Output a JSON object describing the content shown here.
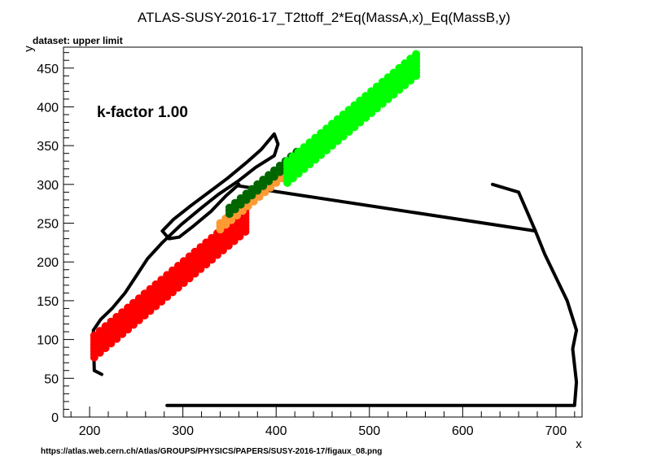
{
  "chart_data": {
    "type": "scatter",
    "title": "ATLAS-SUSY-2016-17_T2ttoff_2*Eq(MassA,x)_Eq(MassB,y)",
    "subtitle": "dataset: upper limit",
    "annotation": "k-factor 1.00",
    "xlabel": "x",
    "ylabel": "y",
    "footer": "https://atlas.web.cern.ch/Atlas/GROUPS/PHYSICS/PAPERS/SUSY-2016-17/figaux_08.png",
    "xlim": [
      172,
      728
    ],
    "ylim": [
      0,
      477
    ],
    "xticks": [
      200,
      300,
      400,
      500,
      600,
      700
    ],
    "yticks": [
      0,
      50,
      100,
      150,
      200,
      250,
      300,
      350,
      400,
      450
    ],
    "grid": false,
    "colors": {
      "red": "#ff0000",
      "orange": "#ff9933",
      "green": "#00ff00",
      "darkgreen": "#006600",
      "contour": "#000000"
    },
    "point_bands": [
      {
        "color": "red",
        "x_start": 205,
        "x_end": 368,
        "dx": 6,
        "offset_min": 100,
        "offset_max": 128
      },
      {
        "color": "orange",
        "x_start": 340,
        "x_end": 412,
        "dx": 6,
        "offset_min": 90,
        "offset_max": 98
      },
      {
        "color": "darkgreen",
        "x_start": 350,
        "x_end": 425,
        "dx": 6,
        "offset_min": 80,
        "offset_max": 88
      },
      {
        "color": "green",
        "x_start": 412,
        "x_end": 552,
        "dx": 6,
        "offset_min": 82,
        "offset_max": 112
      }
    ],
    "contours": [
      {
        "name": "expected",
        "points": [
          [
            213,
            55
          ],
          [
            205,
            60
          ],
          [
            204,
            112
          ],
          [
            212,
            126
          ],
          [
            224,
            140
          ],
          [
            238,
            160
          ],
          [
            250,
            182
          ],
          [
            262,
            204
          ],
          [
            278,
            225
          ],
          [
            298,
            248
          ],
          [
            318,
            268
          ],
          [
            338,
            287
          ],
          [
            360,
            305
          ],
          [
            378,
            322
          ],
          [
            398,
            337
          ],
          [
            415,
            342
          ],
          [
            410,
            322
          ],
          [
            402,
            298
          ],
          [
            393,
            293
          ],
          [
            382,
            293
          ],
          [
            372,
            288
          ],
          [
            357,
            298
          ],
          [
            364,
            308
          ],
          [
            384,
            322
          ],
          [
            398,
            335
          ],
          [
            408,
            338
          ],
          [
            414,
            330
          ],
          [
            408,
            312
          ],
          [
            400,
            300
          ],
          [
            395,
            295
          ],
          [
            378,
            290
          ],
          [
            360,
            298
          ],
          [
            354,
            305
          ],
          [
            370,
            315
          ],
          [
            386,
            325
          ],
          [
            398,
            333
          ],
          [
            404,
            340
          ],
          [
            410,
            343
          ]
        ]
      },
      {
        "name": "upper",
        "points": [
          [
            283,
            15
          ],
          [
            315,
            70
          ],
          [
            345,
            130
          ],
          [
            372,
            158
          ],
          [
            390,
            180
          ],
          [
            410,
            196
          ],
          [
            440,
            212
          ],
          [
            470,
            232
          ],
          [
            500,
            250
          ],
          [
            520,
            270
          ],
          [
            540,
            280
          ],
          [
            570,
            290
          ],
          [
            600,
            295
          ],
          [
            632,
            300
          ],
          [
            660,
            290
          ],
          [
            678,
            240
          ],
          [
            688,
            210
          ],
          [
            700,
            180
          ],
          [
            712,
            150
          ],
          [
            722,
            112
          ],
          [
            718,
            88
          ],
          [
            722,
            45
          ],
          [
            720,
            15
          ],
          [
            283,
            15
          ]
        ]
      },
      {
        "name": "band-upper",
        "points": [
          [
            283,
            15
          ],
          [
            720,
            15
          ],
          [
            722,
            45
          ],
          [
            718,
            88
          ],
          [
            722,
            112
          ],
          [
            712,
            150
          ],
          [
            700,
            180
          ],
          [
            688,
            210
          ],
          [
            678,
            240
          ],
          [
            660,
            290
          ],
          [
            632,
            300
          ]
        ]
      },
      {
        "name": "band-lower",
        "points": [
          [
            213,
            55
          ],
          [
            205,
            60
          ],
          [
            204,
            112
          ],
          [
            212,
            126
          ],
          [
            224,
            140
          ],
          [
            238,
            160
          ],
          [
            250,
            182
          ],
          [
            262,
            204
          ],
          [
            278,
            225
          ],
          [
            298,
            248
          ],
          [
            318,
            268
          ],
          [
            338,
            287
          ],
          [
            360,
            305
          ],
          [
            378,
            322
          ],
          [
            398,
            337
          ],
          [
            402,
            352
          ],
          [
            398,
            365
          ],
          [
            384,
            345
          ],
          [
            368,
            328
          ],
          [
            348,
            308
          ],
          [
            328,
            290
          ],
          [
            308,
            272
          ],
          [
            290,
            255
          ],
          [
            278,
            240
          ],
          [
            285,
            230
          ],
          [
            296,
            232
          ],
          [
            312,
            247
          ],
          [
            330,
            265
          ],
          [
            346,
            285
          ],
          [
            360,
            300
          ]
        ]
      },
      {
        "name": "line",
        "points": [
          [
            360,
            298
          ],
          [
            678,
            240
          ]
        ]
      }
    ]
  }
}
